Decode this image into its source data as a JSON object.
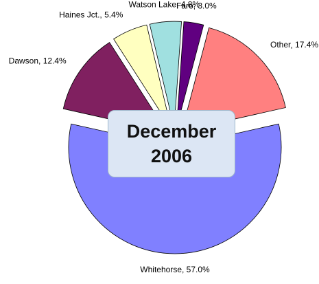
{
  "chart_data": {
    "type": "pie",
    "title": "December 2006",
    "categories": [
      "Whitehorse",
      "Dawson",
      "Haines Jct.",
      "Watson Lake",
      "Faro",
      "Other"
    ],
    "values": [
      57.0,
      12.4,
      5.4,
      4.8,
      3.0,
      17.4
    ],
    "value_labels": [
      "57.0%",
      "12.4%",
      "5.4%",
      "4.8%",
      "3.0%",
      "17.4%"
    ],
    "colors": [
      "#8080ff",
      "#802060",
      "#ffffc0",
      "#a0e0e0",
      "#600080",
      "#ff8080"
    ]
  }
}
